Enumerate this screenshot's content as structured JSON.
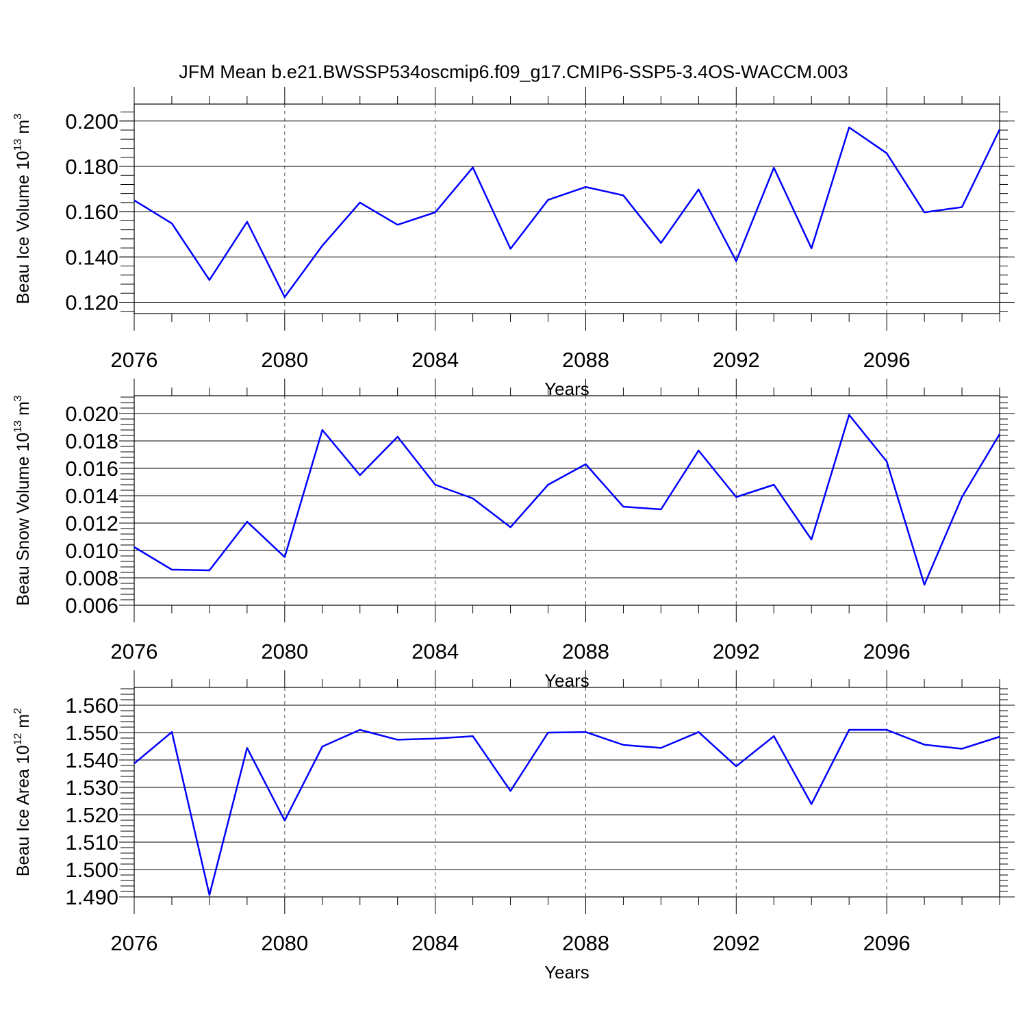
{
  "title": "JFM Mean b.e21.BWSSP534oscmip6.f09_g17.CMIP6-SSP5-3.4OS-WACCM.003",
  "colors": {
    "series": "#0000ff",
    "axis": "#000000",
    "grid": "#555555"
  },
  "chart_data": [
    {
      "type": "line",
      "ylabel": {
        "text": "Beau Ice Volume 10",
        "exp": "13",
        "unit": " m",
        "unit_exp": "3"
      },
      "xlabel": "Years",
      "xlim": [
        2076,
        2099
      ],
      "ylim": [
        0.115,
        0.2075
      ],
      "xticks": [
        2076,
        2080,
        2084,
        2088,
        2092,
        2096
      ],
      "xtick_labels": [
        "2076",
        "2080",
        "2084",
        "2088",
        "2092",
        "2096"
      ],
      "yticks": [
        0.12,
        0.14,
        0.16,
        0.18,
        0.2
      ],
      "ytick_labels": [
        "0.120",
        "0.140",
        "0.160",
        "0.180",
        "0.200"
      ],
      "y_minor_step": 0.004,
      "grid": "vertical-dashed",
      "x": [
        2076,
        2077,
        2078,
        2079,
        2080,
        2081,
        2082,
        2083,
        2084,
        2085,
        2086,
        2087,
        2088,
        2089,
        2090,
        2091,
        2092,
        2093,
        2094,
        2095,
        2096,
        2097,
        2098,
        2099
      ],
      "values": [
        0.165,
        0.1548,
        0.1298,
        0.1555,
        0.1223,
        0.145,
        0.164,
        0.1542,
        0.1597,
        0.1795,
        0.1436,
        0.1652,
        0.1709,
        0.1672,
        0.1462,
        0.1698,
        0.1382,
        0.1794,
        0.1438,
        0.1972,
        0.1858,
        0.1597,
        0.162,
        0.1963
      ]
    },
    {
      "type": "line",
      "ylabel": {
        "text": "Beau Snow Volume 10",
        "exp": "13",
        "unit": " m",
        "unit_exp": "3"
      },
      "xlabel": "Years",
      "xlim": [
        2076,
        2099
      ],
      "ylim": [
        0.006,
        0.0213
      ],
      "xticks": [
        2076,
        2080,
        2084,
        2088,
        2092,
        2096
      ],
      "xtick_labels": [
        "2076",
        "2080",
        "2084",
        "2088",
        "2092",
        "2096"
      ],
      "yticks": [
        0.006,
        0.008,
        0.01,
        0.012,
        0.014,
        0.016,
        0.018,
        0.02
      ],
      "ytick_labels": [
        "0.006",
        "0.008",
        "0.010",
        "0.012",
        "0.014",
        "0.016",
        "0.018",
        "0.020"
      ],
      "y_minor_step": 0.0004,
      "grid": "vertical-dashed",
      "x": [
        2076,
        2077,
        2078,
        2079,
        2080,
        2081,
        2082,
        2083,
        2084,
        2085,
        2086,
        2087,
        2088,
        2089,
        2090,
        2091,
        2092,
        2093,
        2094,
        2095,
        2096,
        2097,
        2098,
        2099
      ],
      "values": [
        0.01025,
        0.0086,
        0.00855,
        0.0121,
        0.00952,
        0.0188,
        0.0155,
        0.0183,
        0.0148,
        0.0138,
        0.0117,
        0.0148,
        0.0163,
        0.0132,
        0.013,
        0.0173,
        0.0139,
        0.0148,
        0.0108,
        0.0199,
        0.0165,
        0.0075,
        0.0139,
        0.0185
      ]
    },
    {
      "type": "line",
      "ylabel": {
        "text": "Beau Ice Area 10",
        "exp": "12",
        "unit": " m",
        "unit_exp": "2"
      },
      "xlabel": "Years",
      "xlim": [
        2076,
        2099
      ],
      "ylim": [
        1.49,
        1.5665
      ],
      "xticks": [
        2076,
        2080,
        2084,
        2088,
        2092,
        2096
      ],
      "xtick_labels": [
        "2076",
        "2080",
        "2084",
        "2088",
        "2092",
        "2096"
      ],
      "yticks": [
        1.49,
        1.5,
        1.51,
        1.52,
        1.53,
        1.54,
        1.55,
        1.56
      ],
      "ytick_labels": [
        "1.490",
        "1.500",
        "1.510",
        "1.520",
        "1.530",
        "1.540",
        "1.550",
        "1.560"
      ],
      "y_minor_step": 0.002,
      "grid": "vertical-dashed",
      "x": [
        2076,
        2077,
        2078,
        2079,
        2080,
        2081,
        2082,
        2083,
        2084,
        2085,
        2086,
        2087,
        2088,
        2089,
        2090,
        2091,
        2092,
        2093,
        2094,
        2095,
        2096,
        2097,
        2098,
        2099
      ],
      "values": [
        1.5387,
        1.5502,
        1.4907,
        1.5444,
        1.5179,
        1.5449,
        1.551,
        1.5474,
        1.5478,
        1.5487,
        1.5287,
        1.55,
        1.5502,
        1.5455,
        1.5444,
        1.5502,
        1.5377,
        1.5487,
        1.5239,
        1.551,
        1.551,
        1.5456,
        1.5441,
        1.5485
      ]
    }
  ]
}
